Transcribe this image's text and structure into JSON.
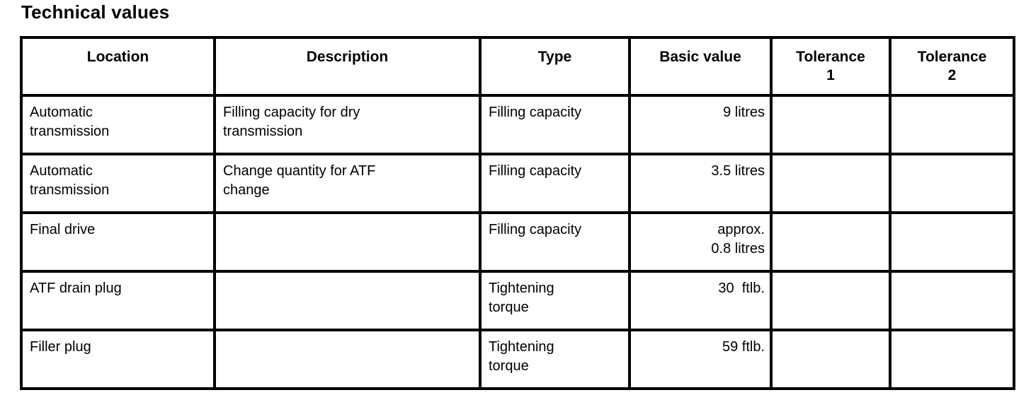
{
  "page": {
    "title": "Technical values"
  },
  "table": {
    "headers": {
      "location": "Location",
      "description": "Description",
      "type": "Type",
      "basic_value": "Basic value",
      "tolerance_1": "Tolerance\n1",
      "tolerance_2": "Tolerance\n2"
    },
    "rows": [
      {
        "location": "Automatic\ntransmission",
        "description": "Filling capacity for dry\ntransmission",
        "type": "Filling capacity",
        "basic_value": "9 litres",
        "tolerance_1": "",
        "tolerance_2": ""
      },
      {
        "location": "Automatic\ntransmission",
        "description": "Change quantity for ATF\nchange",
        "type": "Filling capacity",
        "basic_value": "3.5 litres",
        "tolerance_1": "",
        "tolerance_2": ""
      },
      {
        "location": "Final drive",
        "description": "",
        "type": "Filling capacity",
        "basic_value": "approx.\n0.8 litres",
        "tolerance_1": "",
        "tolerance_2": ""
      },
      {
        "location": "ATF drain plug",
        "description": "",
        "type": "Tightening\ntorque",
        "basic_value": "30  ftlb.",
        "tolerance_1": "",
        "tolerance_2": ""
      },
      {
        "location": "Filler plug",
        "description": "",
        "type": "Tightening\ntorque",
        "basic_value": "59 ftlb.",
        "tolerance_1": "",
        "tolerance_2": ""
      }
    ]
  }
}
